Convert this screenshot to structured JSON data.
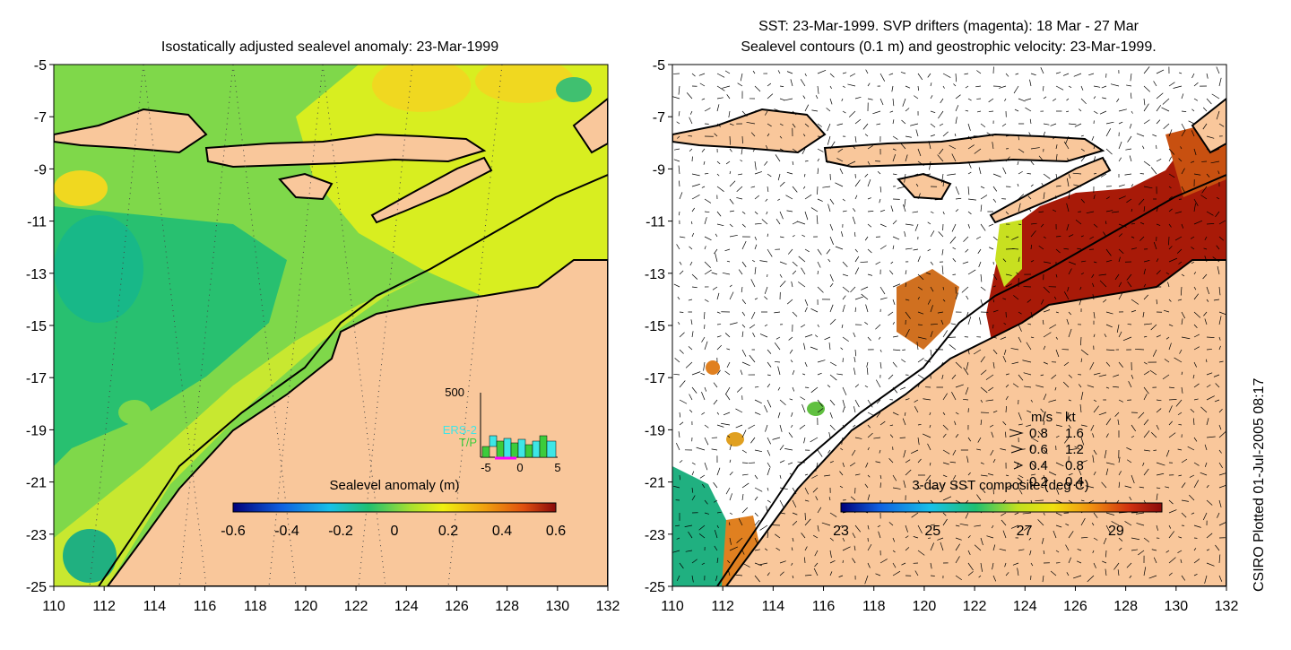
{
  "left_panel": {
    "title": "Isostatically adjusted sealevel anomaly: 23-Mar-1999",
    "colorbar": {
      "label": "Sealevel anomaly (m)",
      "ticks": [
        "-0.6",
        "-0.4",
        "-0.2",
        "0",
        "0.2",
        "0.4",
        "0.6"
      ]
    },
    "inset": {
      "ymax_label": "500",
      "series": [
        "ERS-2",
        "T/P"
      ],
      "x_ticks": [
        "-5",
        "0",
        "5"
      ]
    }
  },
  "right_panel": {
    "title_line1": "SST: 23-Mar-1999. SVP drifters (magenta): 18 Mar - 27 Mar",
    "title_line2": "Sealevel contours (0.1 m) and geostrophic velocity: 23-Mar-1999.",
    "colorbar": {
      "label": "3-day SST composite (deg C)",
      "ticks": [
        "23",
        "25",
        "27",
        "29"
      ]
    },
    "velocity_legend": {
      "header_ms": "m/s",
      "header_kt": "kt",
      "rows": [
        {
          "ms": "0.8",
          "kt": "1.6"
        },
        {
          "ms": "0.6",
          "kt": "1.2"
        },
        {
          "ms": "0.4",
          "kt": "0.8"
        },
        {
          "ms": "0.2",
          "kt": "0.4"
        }
      ]
    }
  },
  "axes": {
    "x_ticks": [
      "110",
      "112",
      "114",
      "116",
      "118",
      "120",
      "122",
      "124",
      "126",
      "128",
      "130",
      "132"
    ],
    "y_ticks": [
      "-5",
      "-7",
      "-9",
      "-11",
      "-13",
      "-15",
      "-17",
      "-19",
      "-21",
      "-23",
      "-25"
    ]
  },
  "credit": "CSIRO Plotted 01-Jul-2005 08:17",
  "colors": {
    "land": "#f9c79b",
    "sla_base": "#7fd84a",
    "sst_high": "#a81a08",
    "ers2": "#3ee6e6",
    "tp": "#3ccc3c",
    "drifter": "#ff00ff"
  }
}
